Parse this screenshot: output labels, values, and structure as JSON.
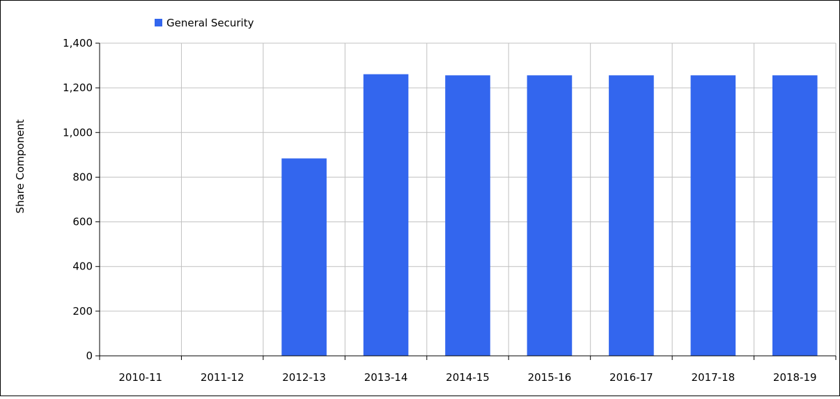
{
  "chart_data": {
    "type": "bar",
    "categories": [
      "2010-11",
      "2011-12",
      "2012-13",
      "2013-14",
      "2014-15",
      "2015-16",
      "2016-17",
      "2017-18",
      "2018-19"
    ],
    "series": [
      {
        "name": "General Security",
        "values": [
          0,
          0,
          884,
          1261,
          1256,
          1256,
          1256,
          1256,
          1256
        ]
      }
    ],
    "ylabel": "Share  Component",
    "xlabel": "",
    "ylim": [
      0,
      1400
    ],
    "yticks": [
      0,
      200,
      400,
      600,
      800,
      1000,
      1200,
      1400
    ],
    "ytick_labels": [
      "0",
      "200",
      "400",
      "600",
      "800",
      "1,000",
      "1,200",
      "1,400"
    ],
    "grid": true,
    "legend_position": "top-left",
    "colors": {
      "bar": "#3366ee",
      "grid": "#c0c0c0",
      "axis": "#000000"
    }
  }
}
